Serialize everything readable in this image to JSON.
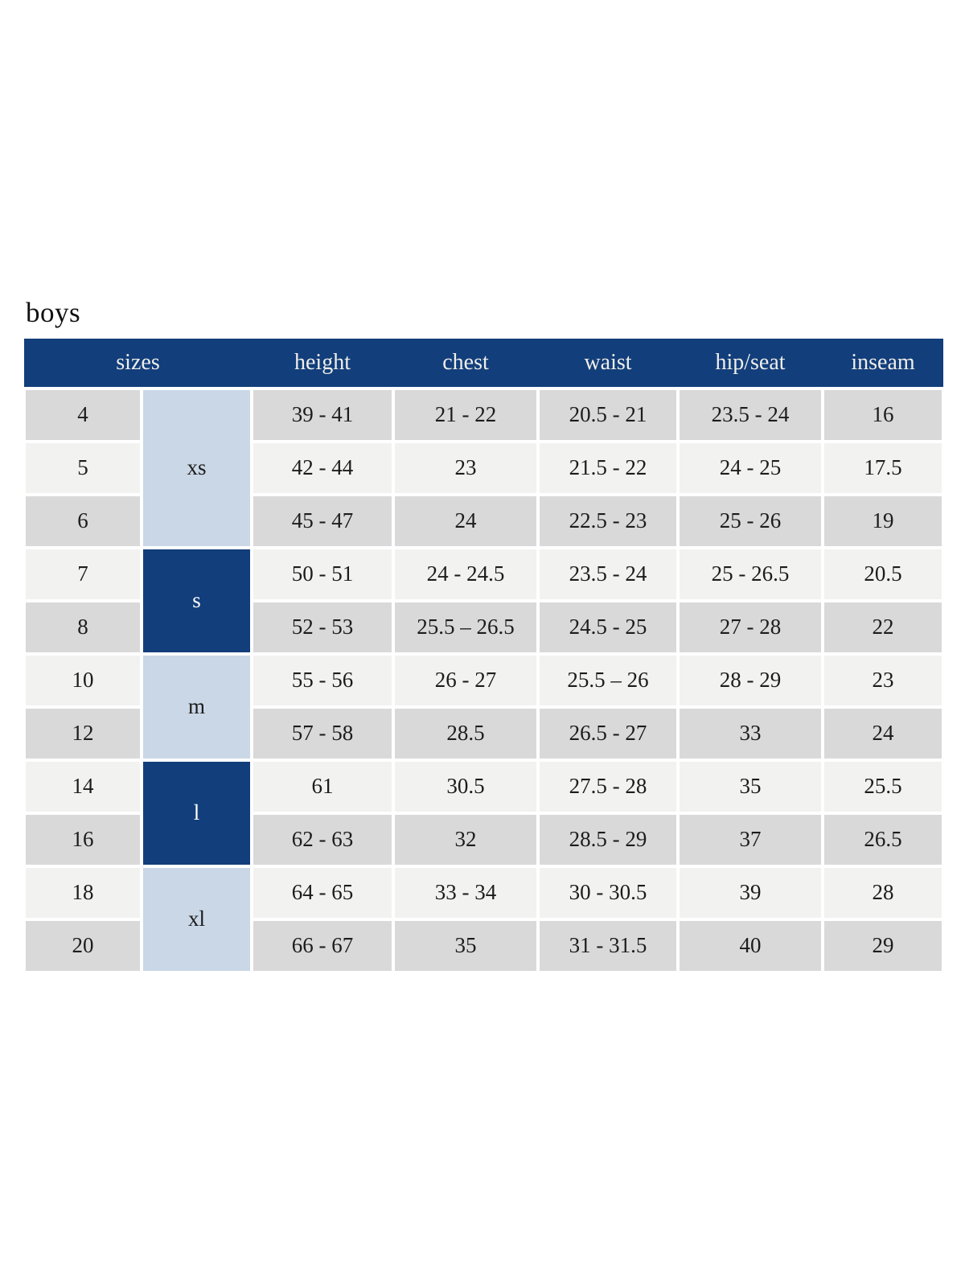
{
  "page": {
    "title": "boys"
  },
  "colors": {
    "header_navy": "#123e7b",
    "group_light_blue": "#cad7e6",
    "row_gray": "#d9d9d9",
    "row_light": "#f2f2f0",
    "header_text": "#efeee9"
  },
  "table": {
    "headers": [
      "sizes",
      "height",
      "chest",
      "waist",
      "hip/seat",
      "inseam"
    ],
    "groups": [
      {
        "label": "xs",
        "style": "light",
        "rows": [
          {
            "size": "4",
            "height": "39 - 41",
            "chest": "21 - 22",
            "waist": "20.5 - 21",
            "hip_seat": "23.5 - 24",
            "inseam": "16"
          },
          {
            "size": "5",
            "height": "42 - 44",
            "chest": "23",
            "waist": "21.5 - 22",
            "hip_seat": "24 - 25",
            "inseam": "17.5"
          },
          {
            "size": "6",
            "height": "45 - 47",
            "chest": "24",
            "waist": "22.5 - 23",
            "hip_seat": "25 - 26",
            "inseam": "19"
          }
        ]
      },
      {
        "label": "s",
        "style": "dark",
        "rows": [
          {
            "size": "7",
            "height": "50 - 51",
            "chest": "24 - 24.5",
            "waist": "23.5 - 24",
            "hip_seat": "25 - 26.5",
            "inseam": "20.5"
          },
          {
            "size": "8",
            "height": "52 - 53",
            "chest": "25.5 – 26.5",
            "waist": "24.5 - 25",
            "hip_seat": "27 - 28",
            "inseam": "22"
          }
        ]
      },
      {
        "label": "m",
        "style": "light",
        "rows": [
          {
            "size": "10",
            "height": "55 - 56",
            "chest": "26 - 27",
            "waist": "25.5 – 26",
            "hip_seat": "28 - 29",
            "inseam": "23"
          },
          {
            "size": "12",
            "height": "57 - 58",
            "chest": "28.5",
            "waist": "26.5 - 27",
            "hip_seat": "33",
            "inseam": "24"
          }
        ]
      },
      {
        "label": "l",
        "style": "dark",
        "rows": [
          {
            "size": "14",
            "height": "61",
            "chest": "30.5",
            "waist": "27.5 - 28",
            "hip_seat": "35",
            "inseam": "25.5"
          },
          {
            "size": "16",
            "height": "62 - 63",
            "chest": "32",
            "waist": "28.5 - 29",
            "hip_seat": "37",
            "inseam": "26.5"
          }
        ]
      },
      {
        "label": "xl",
        "style": "light",
        "rows": [
          {
            "size": "18",
            "height": "64 - 65",
            "chest": "33 - 34",
            "waist": "30 - 30.5",
            "hip_seat": "39",
            "inseam": "28"
          },
          {
            "size": "20",
            "height": "66 - 67",
            "chest": "35",
            "waist": "31 - 31.5",
            "hip_seat": "40",
            "inseam": "29"
          }
        ]
      }
    ]
  }
}
